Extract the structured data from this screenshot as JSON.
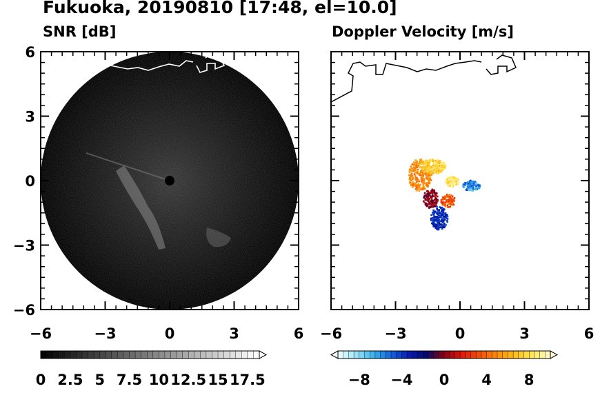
{
  "title": "Fukuoka, 20190810 [17:48, el=10.0]",
  "colors": {
    "snr_ramp": [
      "#000000",
      "#ffffff"
    ],
    "doppler_ramp": [
      "#f2ffff",
      "#9fe6f5",
      "#39b3ec",
      "#1363dc",
      "#061cb0",
      "#050a6a",
      "#8b0013",
      "#de1a0a",
      "#f05008",
      "#fb8c0c",
      "#ffbf1c",
      "#ffe85a",
      "#fffad2"
    ],
    "coastline": "#ffffff",
    "coastline_on_white": "#000000"
  },
  "chart_data": [
    {
      "type": "heatmap",
      "name": "snr",
      "title": "SNR [dB]",
      "xlim": [
        -6,
        6
      ],
      "ylim": [
        -6,
        6
      ],
      "xticks": [
        -6,
        -3,
        0,
        3,
        6
      ],
      "yticks": [
        -6,
        -3,
        0,
        3,
        6
      ],
      "xtick_labels": [
        "−6",
        "−3",
        "0",
        "3",
        "6"
      ],
      "ytick_labels": [
        "−6",
        "−3",
        "0",
        "3",
        "6"
      ],
      "radar_range": 6,
      "colorbar": {
        "min": 0,
        "max": 18.5,
        "step": 0.5,
        "extend": "max",
        "tick_values": [
          0,
          2.5,
          5,
          7.5,
          10,
          12.5,
          15,
          17.5
        ],
        "tick_labels": [
          "0",
          "2.5",
          "5",
          "7.5",
          "10",
          "12.5",
          "15",
          "17.5"
        ]
      }
    },
    {
      "type": "heatmap",
      "name": "doppler",
      "title": "Doppler Velocity [m/s]",
      "xlim": [
        -6,
        6
      ],
      "ylim": [
        -6,
        6
      ],
      "xticks": [
        -6,
        -3,
        0,
        3,
        6
      ],
      "yticks": [
        -6,
        -3,
        0,
        3,
        6
      ],
      "xtick_labels": [
        "−6",
        "−3",
        "0",
        "3",
        "6"
      ],
      "ytick_labels": [
        "",
        "",
        "",
        "",
        ""
      ],
      "colorbar": {
        "min": -10,
        "max": 10,
        "step": 0.5,
        "extend": "both",
        "tick_values": [
          -8,
          -4,
          0,
          4,
          8
        ],
        "tick_labels": [
          "−8",
          "−4",
          "0",
          "4",
          "8"
        ]
      }
    }
  ]
}
